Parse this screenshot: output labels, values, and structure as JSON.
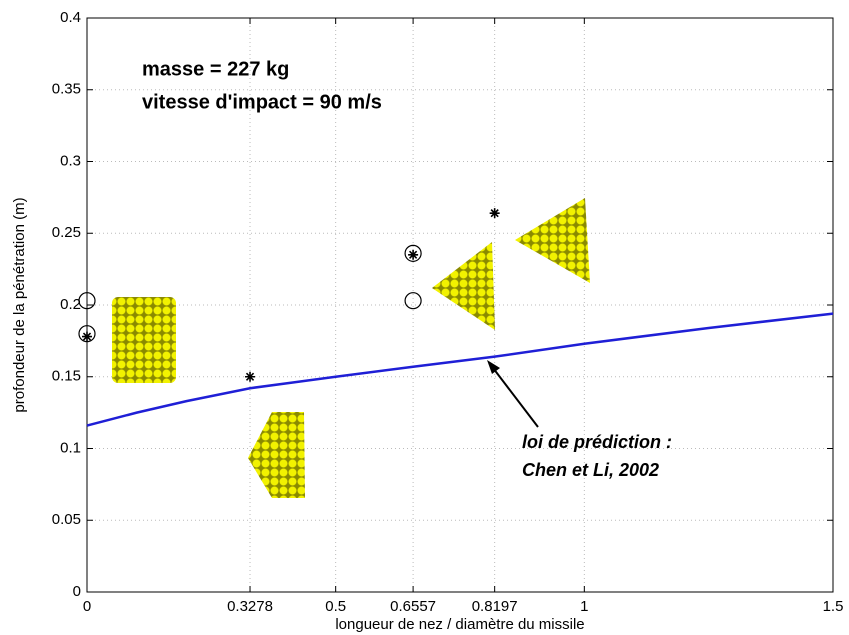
{
  "chart_data": {
    "type": "line",
    "x_label": "longueur de nez / diamètre du missile",
    "y_label": "profondeur de la pénétration (m)",
    "xlim": [
      0,
      1.5
    ],
    "xticks": [
      0,
      0.3278,
      0.5,
      0.6557,
      0.8197,
      1,
      1.5
    ],
    "ylim": [
      0,
      0.4
    ],
    "yticks": [
      0,
      0.05,
      0.1,
      0.15,
      0.2,
      0.25,
      0.3,
      0.35,
      0.4
    ],
    "grid": true,
    "series": [
      {
        "style": "line",
        "color": "#1f1fd6",
        "x": [
          0,
          0.1,
          0.2,
          0.3278,
          0.5,
          0.6557,
          0.8197,
          1,
          1.25,
          1.5
        ],
        "values": [
          0.116,
          0.125,
          0.133,
          0.142,
          0.15,
          0.157,
          0.164,
          0.173,
          0.184,
          0.194
        ]
      },
      {
        "style": "star",
        "color": "#000000",
        "x": [
          0,
          0.3278,
          0.6557,
          0.8197
        ],
        "values": [
          0.178,
          0.15,
          0.235,
          0.264
        ]
      },
      {
        "style": "circle",
        "color": "#000000",
        "x": [
          0,
          0,
          0.6557,
          0.6557
        ],
        "values": [
          0.203,
          0.18,
          0.236,
          0.203
        ]
      }
    ],
    "annotations": [
      "masse = 227 kg",
      "vitesse d'impact = 90 m/s",
      "loi de prédiction :",
      "Chen et Li, 2002"
    ]
  }
}
